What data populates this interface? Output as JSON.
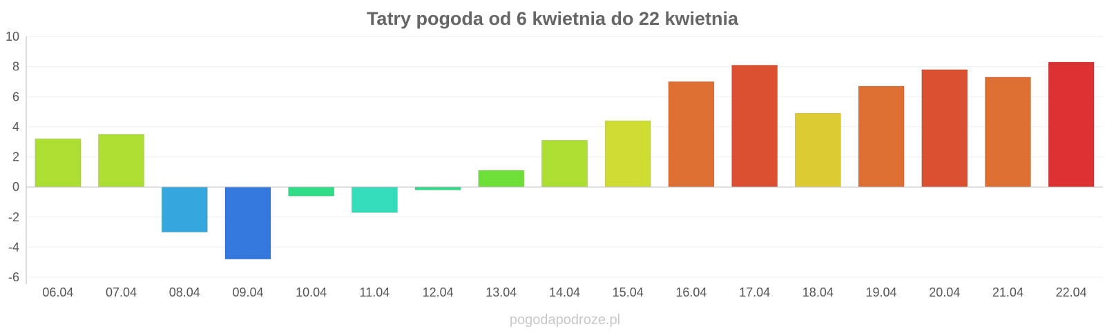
{
  "chart_data": {
    "type": "bar",
    "title": "Tatry pogoda od 6 kwietnia do 22 kwietnia",
    "xlabel": "",
    "ylabel": "",
    "ylim": [
      -6,
      10
    ],
    "yticks": [
      "10",
      "8",
      "6",
      "4",
      "2",
      "0",
      "-2",
      "-4",
      "-6"
    ],
    "categories": [
      "06.04",
      "07.04",
      "08.04",
      "09.04",
      "10.04",
      "11.04",
      "12.04",
      "13.04",
      "14.04",
      "15.04",
      "16.04",
      "17.04",
      "18.04",
      "19.04",
      "20.04",
      "21.04",
      "22.04"
    ],
    "values": [
      3.2,
      3.5,
      -3.0,
      -4.8,
      -0.6,
      -1.7,
      -0.2,
      1.1,
      3.1,
      4.4,
      7.0,
      8.1,
      4.9,
      6.7,
      7.8,
      7.3,
      8.3
    ],
    "colors": [
      "#addf32",
      "#addf32",
      "#36a6de",
      "#3477dd",
      "#31dc89",
      "#34dcbc",
      "#31dc89",
      "#6ddf37",
      "#addf32",
      "#cfdd32",
      "#de6f33",
      "#dc5032",
      "#dccb32",
      "#de6f33",
      "#dc5032",
      "#de6f33",
      "#dc3232"
    ],
    "grid": true,
    "legend": "none"
  },
  "watermark": "pogodapodroze.pl"
}
